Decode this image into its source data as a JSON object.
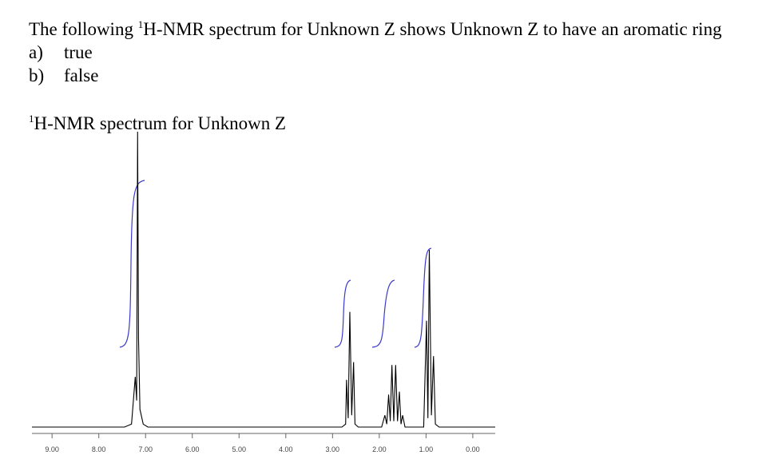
{
  "question": {
    "text_before": "The following ",
    "sup": "1",
    "text_after": "H-NMR spectrum for Unknown Z shows Unknown Z to have an aromatic ring"
  },
  "options": [
    {
      "letter": "a)",
      "text": "true"
    },
    {
      "letter": "b)",
      "text": "false"
    }
  ],
  "chart_data": {
    "type": "line",
    "title_sup": "1",
    "title": "H-NMR spectrum for Unknown Z",
    "x": [
      9.43,
      7.45,
      7.3,
      7.22,
      7.19,
      7.17,
      7.15,
      7.12,
      7.05,
      6.95,
      2.8,
      2.72,
      2.7,
      2.665,
      2.63,
      2.59,
      2.55,
      2.52,
      2.45,
      1.95,
      1.88,
      1.84,
      1.8,
      1.765,
      1.73,
      1.69,
      1.65,
      1.61,
      1.57,
      1.535,
      1.5,
      1.45,
      1.05,
      0.99,
      0.96,
      0.93,
      0.885,
      0.84,
      0.8,
      0.72,
      -0.48
    ],
    "values": [
      0,
      0,
      1,
      17,
      9,
      100,
      30,
      6,
      1,
      0,
      0,
      1,
      16,
      3,
      39,
      4,
      22,
      1,
      0,
      0,
      4,
      1,
      11,
      2,
      21,
      2,
      21,
      2,
      12,
      1,
      4,
      0,
      0,
      36,
      3,
      60,
      4,
      24,
      1,
      0,
      0
    ],
    "color": "#000000",
    "xlim": [
      9.43,
      -0.48
    ],
    "ylim": [
      0,
      100
    ],
    "xticks": [
      {
        "value": 9,
        "label": "9.00"
      },
      {
        "value": 8,
        "label": "8.00"
      },
      {
        "value": 7,
        "label": "7.00"
      },
      {
        "value": 6,
        "label": "6.00"
      },
      {
        "value": 5,
        "label": "5.00"
      },
      {
        "value": 4,
        "label": "4.00"
      },
      {
        "value": 3,
        "label": "3.00"
      },
      {
        "value": 2,
        "label": "2.00"
      },
      {
        "value": 1,
        "label": "1.00"
      },
      {
        "value": 0,
        "label": "0.00"
      }
    ]
  }
}
